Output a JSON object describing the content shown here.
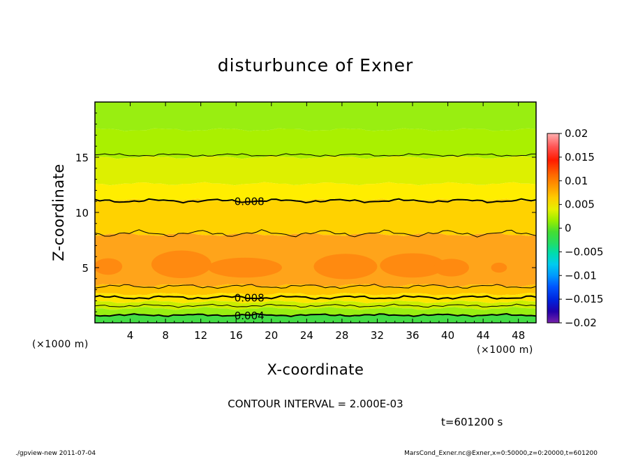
{
  "chart_data": {
    "type": "heatmap",
    "title": "disturbunce of Exner",
    "xlabel": "X-coordinate",
    "ylabel": "Z-coordinate",
    "x_unit": "(×1000 m)",
    "y_unit": "(×1000 m)",
    "xlim": [
      0,
      50
    ],
    "ylim": [
      0,
      20
    ],
    "x_ticks": [
      4,
      8,
      12,
      16,
      20,
      24,
      28,
      32,
      36,
      40,
      44,
      48
    ],
    "y_ticks": [
      5,
      10,
      15
    ],
    "colorbar": {
      "min": -0.02,
      "max": 0.02,
      "tick_values": [
        0.02,
        0.015,
        0.01,
        0.005,
        0,
        -0.005,
        -0.01,
        -0.015,
        -0.02
      ],
      "tick_labels": [
        "0.02",
        "0.015",
        "0.01",
        "0.005",
        "0",
        "−0.005",
        "−0.01",
        "−0.015",
        "−0.02"
      ]
    },
    "bands": [
      {
        "z_top": 20.0,
        "z_bottom": 17.5,
        "color": "#99ee11"
      },
      {
        "z_top": 17.5,
        "z_bottom": 15.0,
        "color": "#aaf000"
      },
      {
        "z_top": 15.0,
        "z_bottom": 12.6,
        "color": "#ddf000"
      },
      {
        "z_top": 12.6,
        "z_bottom": 11.1,
        "color": "#ffee00"
      },
      {
        "z_top": 11.1,
        "z_bottom": 8.0,
        "color": "#ffd200"
      },
      {
        "z_top": 8.0,
        "z_bottom": 3.4,
        "color": "#ffa41a"
      },
      {
        "z_top": 3.4,
        "z_bottom": 2.6,
        "color": "#ffc300"
      },
      {
        "z_top": 2.6,
        "z_bottom": 1.9,
        "color": "#ffe500"
      },
      {
        "z_top": 1.9,
        "z_bottom": 1.3,
        "color": "#ccee00"
      },
      {
        "z_top": 1.3,
        "z_bottom": 0.7,
        "color": "#99ee11"
      },
      {
        "z_top": 0.7,
        "z_bottom": 0.0,
        "color": "#44dd44"
      }
    ],
    "blobs": [
      {
        "x": 1.5,
        "z": 5.1,
        "rx": 1.6,
        "rz": 0.75,
        "color": "#ff8a10"
      },
      {
        "x": 9.8,
        "z": 5.3,
        "rx": 3.4,
        "rz": 1.25,
        "color": "#ff8a10"
      },
      {
        "x": 17.0,
        "z": 5.0,
        "rx": 4.2,
        "rz": 0.9,
        "color": "#ff8a10"
      },
      {
        "x": 28.4,
        "z": 5.1,
        "rx": 3.6,
        "rz": 1.15,
        "color": "#ff8a10"
      },
      {
        "x": 36.0,
        "z": 5.2,
        "rx": 3.7,
        "rz": 1.1,
        "color": "#ff8a10"
      },
      {
        "x": 40.4,
        "z": 5.0,
        "rx": 2.0,
        "rz": 0.8,
        "color": "#ff8a10"
      },
      {
        "x": 45.8,
        "z": 5.0,
        "rx": 0.9,
        "rz": 0.45,
        "color": "#ff8a10"
      }
    ],
    "contours": [
      {
        "z": 15.2,
        "amp": 0.08,
        "width": 1
      },
      {
        "z": 11.05,
        "amp": 0.1,
        "width": 2
      },
      {
        "z": 8.1,
        "amp": 0.2,
        "width": 1
      },
      {
        "z": 3.3,
        "amp": 0.12,
        "width": 1
      },
      {
        "z": 2.3,
        "amp": 0.1,
        "width": 2
      },
      {
        "z": 1.55,
        "amp": 0.08,
        "width": 1
      },
      {
        "z": 0.7,
        "amp": 0.06,
        "width": 2
      }
    ],
    "contour_labels": [
      {
        "text": "0.008",
        "x": 17.5,
        "z": 11.05
      },
      {
        "text": "0.008",
        "x": 17.5,
        "z": 2.3
      },
      {
        "text": "0.004",
        "x": 17.5,
        "z": 0.7
      }
    ]
  },
  "footer": {
    "contour_interval": "CONTOUR INTERVAL = 2.000E-03",
    "time": "t=601200 s",
    "program": "./gpview-new   2011-07-04",
    "source": "MarsCond_Exner.nc@Exner,x=0:50000,z=0:20000,t=601200"
  }
}
